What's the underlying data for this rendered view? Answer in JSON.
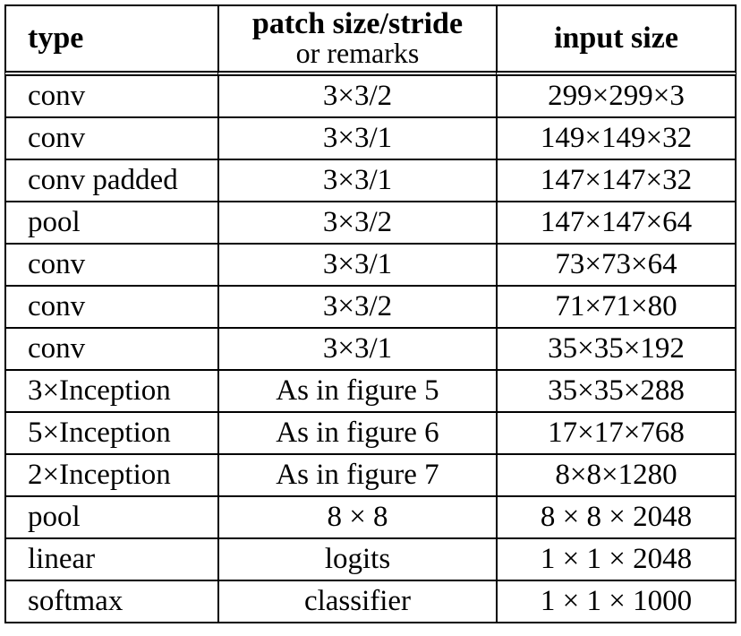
{
  "table": {
    "headers": {
      "type": "type",
      "patch_main": "patch size/stride",
      "patch_sub": "or remarks",
      "input": "input size"
    },
    "rows": [
      {
        "type": "conv",
        "patch": "3×3/2",
        "input": "299×299×3"
      },
      {
        "type": "conv",
        "patch": "3×3/1",
        "input": "149×149×32"
      },
      {
        "type": "conv padded",
        "patch": "3×3/1",
        "input": "147×147×32"
      },
      {
        "type": "pool",
        "patch": "3×3/2",
        "input": "147×147×64"
      },
      {
        "type": "conv",
        "patch": "3×3/1",
        "input": "73×73×64"
      },
      {
        "type": "conv",
        "patch": "3×3/2",
        "input": "71×71×80"
      },
      {
        "type": "conv",
        "patch": "3×3/1",
        "input": "35×35×192"
      },
      {
        "type": "3×Inception",
        "patch": "As in figure 5",
        "input": "35×35×288"
      },
      {
        "type": "5×Inception",
        "patch": "As in figure 6",
        "input": "17×17×768"
      },
      {
        "type": "2×Inception",
        "patch": "As in figure 7",
        "input": "8×8×1280"
      },
      {
        "type": "pool",
        "patch": "8 × 8",
        "input": "8 × 8 × 2048"
      },
      {
        "type": "linear",
        "patch": "logits",
        "input": "1 × 1 × 2048"
      },
      {
        "type": "softmax",
        "patch": "classifier",
        "input": "1 × 1 × 1000"
      }
    ]
  }
}
